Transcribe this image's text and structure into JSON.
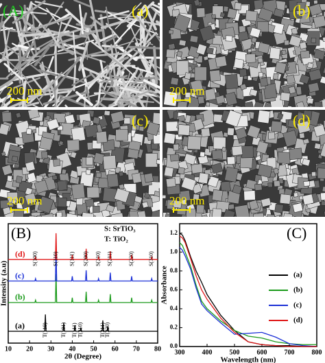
{
  "figure_label": "(A)",
  "sem_panels": [
    {
      "label": "(a)",
      "scale_bar": "200 nm"
    },
    {
      "label": "(b)",
      "scale_bar": "200 nm"
    },
    {
      "label": "(c)",
      "scale_bar": "200 nm"
    },
    {
      "label": "(d)",
      "scale_bar": "200 nm"
    }
  ],
  "chart_data": [
    {
      "type": "line",
      "title": "(B)",
      "x_label": "2θ (Degree)",
      "y_label": "Intensity (a.u)",
      "notes": [
        "S: SrTiO₃",
        "T: TiO₂"
      ],
      "legend": "inline",
      "xlim": [
        10,
        80
      ],
      "xticks": [
        10,
        20,
        30,
        40,
        50,
        60,
        70,
        80
      ],
      "ylim": [
        0,
        100
      ],
      "x": [
        10,
        22.5,
        22.8,
        23.1,
        27.1,
        27.4,
        27.7,
        32.1,
        32.4,
        32.7,
        35.7,
        36,
        36.3,
        39.7,
        40,
        40.3,
        40.9,
        41.2,
        41.5,
        43.7,
        44,
        44.3,
        46.2,
        46.5,
        46.8,
        52,
        52.3,
        52.6,
        54,
        54.3,
        54.6,
        56.3,
        56.6,
        56.9,
        57.5,
        57.8,
        58.1,
        67.5,
        67.8,
        68.1,
        76.9,
        77.2,
        77.5,
        80
      ],
      "series": [
        {
          "name": "(a)",
          "color": "#000000",
          "values": [
            10,
            10,
            10,
            10,
            10,
            24,
            10,
            10,
            10,
            10,
            10,
            17,
            10,
            10,
            10,
            10,
            10,
            15,
            10,
            10,
            13,
            10,
            10,
            10,
            10,
            10,
            10,
            10,
            10,
            19,
            10,
            10,
            14,
            10,
            10,
            10,
            10,
            10,
            10,
            10,
            10,
            10,
            10,
            10
          ]
        },
        {
          "name": "(b)",
          "color": "#1a9a1a",
          "values": [
            34,
            34,
            36,
            34,
            34,
            34,
            34,
            34,
            58,
            34,
            34,
            34,
            34,
            34,
            38,
            34,
            34,
            34,
            34,
            34,
            34,
            34,
            34,
            43,
            34,
            34,
            36,
            34,
            34,
            34,
            34,
            34,
            34,
            34,
            34,
            41,
            34,
            34,
            38,
            34,
            34,
            36,
            34,
            34
          ]
        },
        {
          "name": "(c)",
          "color": "#1a2fd6",
          "values": [
            52,
            52,
            54,
            52,
            52,
            52,
            52,
            52,
            78,
            52,
            52,
            52,
            52,
            52,
            56,
            52,
            52,
            52,
            52,
            52,
            52,
            52,
            52,
            61,
            52,
            52,
            54,
            52,
            52,
            52,
            52,
            52,
            52,
            52,
            52,
            59,
            52,
            52,
            56,
            52,
            52,
            54,
            52,
            52
          ]
        },
        {
          "name": "(d)",
          "color": "#e01818",
          "values": [
            70,
            70,
            72,
            70,
            70,
            70,
            70,
            70,
            92,
            70,
            70,
            70,
            70,
            70,
            74,
            70,
            70,
            70,
            70,
            70,
            70,
            70,
            70,
            79,
            70,
            70,
            72,
            70,
            70,
            70,
            70,
            70,
            70,
            70,
            70,
            77,
            70,
            70,
            74,
            70,
            70,
            72,
            70,
            70
          ]
        }
      ],
      "annotations": [
        {
          "text": "S(100)",
          "x": 22.8,
          "group": "S"
        },
        {
          "text": "S(110)",
          "x": 32.4,
          "group": "S"
        },
        {
          "text": "S(111)",
          "x": 40,
          "group": "S"
        },
        {
          "text": "S(200)",
          "x": 46.5,
          "group": "S"
        },
        {
          "text": "S(210)",
          "x": 52.3,
          "group": "S"
        },
        {
          "text": "S(211)",
          "x": 57.8,
          "group": "S"
        },
        {
          "text": "S(220)",
          "x": 67.8,
          "group": "S"
        },
        {
          "text": "S(310)",
          "x": 77.2,
          "group": "S"
        },
        {
          "text": "T(110)",
          "x": 27.4,
          "group": "T"
        },
        {
          "text": "T(101)",
          "x": 36,
          "group": "T"
        },
        {
          "text": "T(111)",
          "x": 41.2,
          "group": "T"
        },
        {
          "text": "T(210)",
          "x": 44,
          "group": "T"
        },
        {
          "text": "T(211)",
          "x": 54.3,
          "group": "T"
        },
        {
          "text": "T(220)",
          "x": 56.6,
          "group": "T"
        }
      ]
    },
    {
      "type": "line",
      "title": "(C)",
      "x_label": "Wavelength (nm)",
      "y_label": "Absorbance",
      "legend": "right",
      "xlim": [
        300,
        800
      ],
      "xticks": [
        300,
        400,
        500,
        600,
        700,
        800
      ],
      "ylim": [
        0,
        1.3
      ],
      "yticks": [
        {
          "value": 0,
          "label": "0.0"
        },
        0.2,
        0.4,
        0.6,
        0.8,
        {
          "value": 1,
          "label": "1.0"
        },
        1.2
      ],
      "x": [
        300,
        310,
        320,
        340,
        360,
        380,
        400,
        450,
        500,
        550,
        600,
        650,
        700,
        750,
        800
      ],
      "series": [
        {
          "name": "(a)",
          "color": "#000000",
          "values": [
            1.2,
            1.18,
            1.12,
            0.95,
            0.8,
            0.68,
            0.55,
            0.33,
            0.17,
            0.05,
            0.02,
            0.01,
            0.01,
            0,
            0
          ]
        },
        {
          "name": "(b)",
          "color": "#1a9a1a",
          "values": [
            1.1,
            1.07,
            1,
            0.85,
            0.65,
            0.48,
            0.4,
            0.27,
            0.17,
            0.11,
            0.09,
            0.05,
            0.03,
            0.02,
            0.02
          ]
        },
        {
          "name": "(c)",
          "color": "#1a2fd6",
          "values": [
            1.05,
            1.02,
            0.96,
            0.82,
            0.62,
            0.45,
            0.38,
            0.25,
            0.13,
            0.14,
            0.15,
            0.1,
            0.03,
            0.01,
            0
          ]
        },
        {
          "name": "(d)",
          "color": "#e01818",
          "values": [
            1.17,
            1.15,
            1.1,
            0.93,
            0.75,
            0.6,
            0.5,
            0.3,
            0.15,
            0.05,
            0.02,
            0.01,
            0,
            0,
            0
          ]
        }
      ]
    }
  ]
}
